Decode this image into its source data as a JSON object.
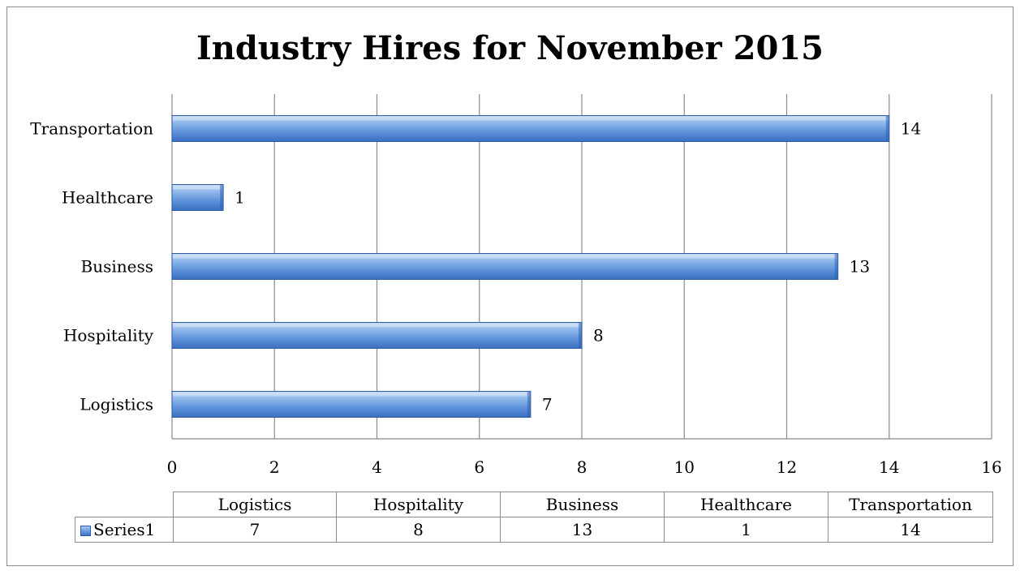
{
  "chart_data": {
    "type": "bar",
    "orientation": "horizontal",
    "title": "Industry Hires for November 2015",
    "categories": [
      "Logistics",
      "Hospitality",
      "Business",
      "Healthcare",
      "Transportation"
    ],
    "series": [
      {
        "name": "Series1",
        "values": [
          7,
          8,
          13,
          1,
          14
        ]
      }
    ],
    "xlim": [
      0,
      16
    ],
    "x_ticks": [
      0,
      2,
      4,
      6,
      8,
      10,
      12,
      14,
      16
    ],
    "grid": true,
    "data_labels": true,
    "data_table": true,
    "bar_color": "#6d9fe0"
  }
}
